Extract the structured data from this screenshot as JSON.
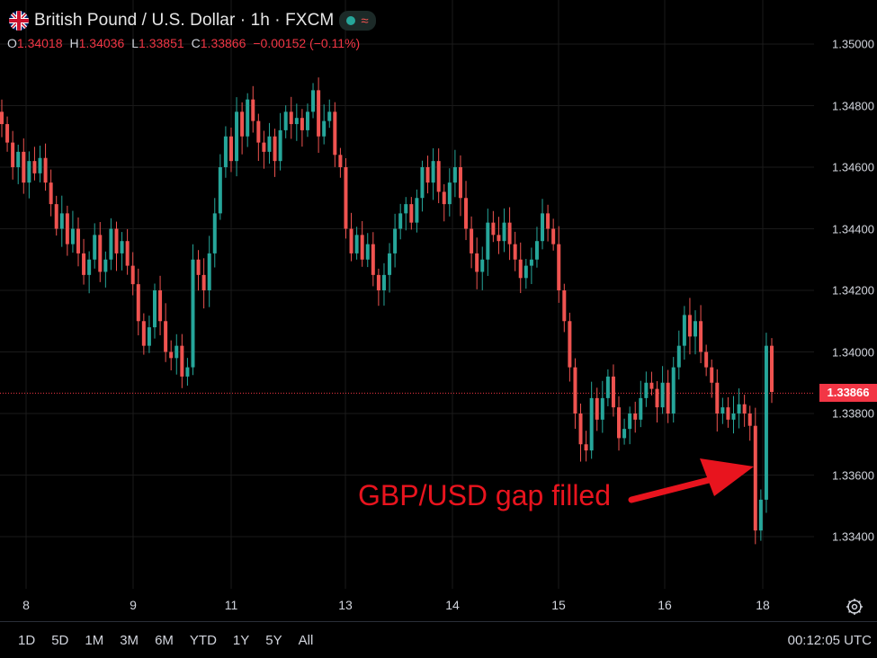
{
  "header": {
    "symbol_title": "British Pound / U.S. Dollar · 1h · FXCM",
    "flag_icon": "uk-flag-icon",
    "status_icon": "market-open-dot-icon",
    "wave_icon": "wave-icon"
  },
  "ohlc": {
    "open_label": "O",
    "open": "1.34018",
    "high_label": "H",
    "high": "1.34036",
    "low_label": "L",
    "low": "1.33851",
    "close_label": "C",
    "close": "1.33866",
    "change": "−0.00152 (−0.11%)"
  },
  "chart_data": {
    "type": "candlestick",
    "symbol": "GBP/USD",
    "timeframe": "1h",
    "ylim": [
      1.333,
      1.3508
    ],
    "y_ticks": [
      "1.35000",
      "1.34800",
      "1.34600",
      "1.34400",
      "1.34200",
      "1.34000",
      "1.33800",
      "1.33600",
      "1.33400"
    ],
    "x_ticks": [
      "8",
      "9",
      "11",
      "13",
      "14",
      "15",
      "16",
      "18"
    ],
    "current_price": "1.33866",
    "current_price_value": 1.33866,
    "close_path": [
      1.3474,
      1.3468,
      1.346,
      1.3465,
      1.3455,
      1.3462,
      1.3458,
      1.3463,
      1.3455,
      1.3448,
      1.344,
      1.3445,
      1.3435,
      1.344,
      1.3432,
      1.3425,
      1.343,
      1.3438,
      1.3426,
      1.343,
      1.344,
      1.3432,
      1.3436,
      1.3428,
      1.3422,
      1.341,
      1.3402,
      1.3408,
      1.342,
      1.341,
      1.34,
      1.3398,
      1.3402,
      1.3392,
      1.3395,
      1.343,
      1.3425,
      1.342,
      1.3432,
      1.3445,
      1.346,
      1.347,
      1.3462,
      1.3478,
      1.347,
      1.3482,
      1.3475,
      1.3468,
      1.3465,
      1.347,
      1.3462,
      1.3472,
      1.3478,
      1.3474,
      1.3476,
      1.3472,
      1.3478,
      1.3485,
      1.347,
      1.3475,
      1.3478,
      1.3464,
      1.346,
      1.344,
      1.3432,
      1.3438,
      1.343,
      1.3435,
      1.3425,
      1.342,
      1.3425,
      1.3432,
      1.344,
      1.3445,
      1.3448,
      1.3442,
      1.345,
      1.346,
      1.3455,
      1.3462,
      1.3452,
      1.3448,
      1.3455,
      1.346,
      1.345,
      1.344,
      1.3432,
      1.3426,
      1.343,
      1.3442,
      1.3438,
      1.3436,
      1.3442,
      1.3435,
      1.343,
      1.3424,
      1.3428,
      1.343,
      1.3436,
      1.3445,
      1.344,
      1.3435,
      1.342,
      1.341,
      1.3395,
      1.338,
      1.337,
      1.3368,
      1.3385,
      1.3378,
      1.3385,
      1.3392,
      1.3382,
      1.3372,
      1.3375,
      1.338,
      1.3378,
      1.3385,
      1.339,
      1.3388,
      1.3382,
      1.339,
      1.338,
      1.3395,
      1.3402,
      1.3412,
      1.3405,
      1.341,
      1.34,
      1.3395,
      1.339,
      1.338,
      1.3382,
      1.3378,
      1.338,
      1.3383,
      1.338,
      1.3376,
      1.3342,
      1.3352,
      1.3402,
      1.3387
    ]
  },
  "price_labels": [
    "1.35000",
    "1.34800",
    "1.34600",
    "1.34400",
    "1.34200",
    "1.34000",
    "1.33800",
    "1.33600",
    "1.33400"
  ],
  "time_labels": [
    "8",
    "9",
    "11",
    "13",
    "14",
    "15",
    "16",
    "18"
  ],
  "settings_icon": "settings-gear-icon",
  "bottom_bar": {
    "ranges": [
      "1D",
      "5D",
      "1M",
      "3M",
      "6M",
      "YTD",
      "1Y",
      "5Y",
      "All"
    ],
    "clock": "00:12:05 UTC"
  },
  "annotation": {
    "text": "GBP/USD gap filled",
    "color": "#e8141e"
  },
  "colors": {
    "up": "#26a69a",
    "down": "#ef5350",
    "grid": "#1a1a1a",
    "price_line": "#f23645"
  }
}
